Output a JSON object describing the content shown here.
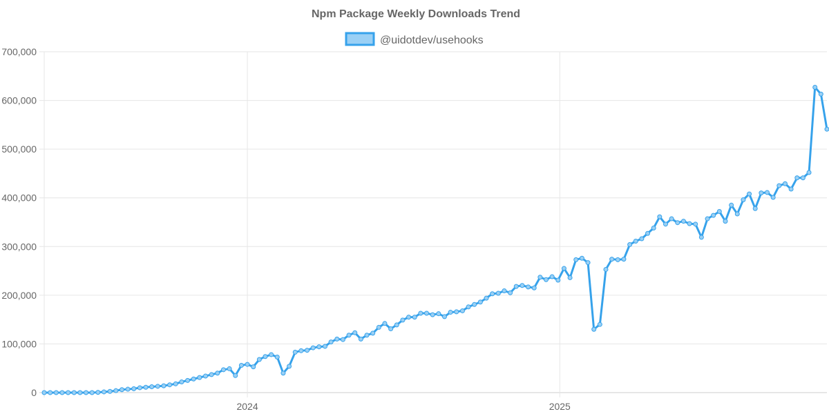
{
  "chart_data": {
    "type": "line",
    "title": "Npm Package Weekly Downloads Trend",
    "xlabel": "",
    "ylabel": "",
    "x_start": "2023-05-08",
    "x_step_days": 7,
    "x_tick_labels": [
      "2024",
      "2025"
    ],
    "x_ticks": [
      "2024-01-01",
      "2025-01-01"
    ],
    "y_ticks": [
      0,
      100000,
      200000,
      300000,
      400000,
      500000,
      600000,
      700000
    ],
    "y_tick_labels": [
      "0",
      "100,000",
      "200,000",
      "300,000",
      "400,000",
      "500,000",
      "600,000",
      "700,000"
    ],
    "ylim": [
      0,
      700000
    ],
    "grid": true,
    "legend_position": "top",
    "series": [
      {
        "name": "@uidotdev/usehooks",
        "color": "#36a2eb",
        "fill": "#9ad0f5",
        "values": [
          0,
          0,
          0,
          0,
          0,
          0,
          0,
          0,
          0,
          500,
          1500,
          2500,
          4000,
          6000,
          7000,
          8000,
          10000,
          11000,
          12000,
          13000,
          14000,
          16000,
          18000,
          22000,
          25000,
          28000,
          31000,
          34000,
          37000,
          40000,
          47000,
          49000,
          35000,
          56000,
          58000,
          53000,
          68000,
          74000,
          78000,
          73000,
          40000,
          54000,
          83000,
          86000,
          87000,
          92000,
          94000,
          95000,
          104000,
          110000,
          109000,
          118000,
          123000,
          110000,
          118000,
          122000,
          134000,
          142000,
          131000,
          139000,
          149000,
          155000,
          155000,
          163000,
          163000,
          160000,
          162000,
          156000,
          165000,
          166000,
          168000,
          176000,
          181000,
          186000,
          194000,
          203000,
          204000,
          209000,
          205000,
          218000,
          220000,
          217000,
          215000,
          237000,
          232000,
          238000,
          231000,
          255000,
          236000,
          273000,
          276000,
          267000,
          130000,
          140000,
          253000,
          274000,
          273000,
          274000,
          304000,
          311000,
          316000,
          327000,
          338000,
          361000,
          346000,
          357000,
          349000,
          352000,
          347000,
          346000,
          319000,
          357000,
          364000,
          372000,
          352000,
          385000,
          367000,
          396000,
          408000,
          378000,
          410000,
          411000,
          401000,
          425000,
          429000,
          418000,
          441000,
          441000,
          452000,
          627000,
          613000,
          541000
        ]
      }
    ]
  }
}
